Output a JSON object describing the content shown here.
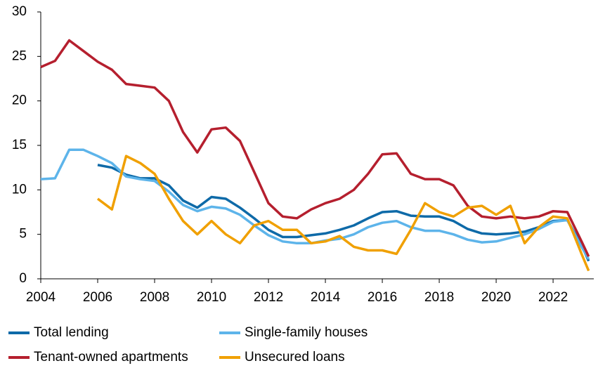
{
  "chart_data": {
    "type": "line",
    "x": [
      2004,
      2004.5,
      2005,
      2005.5,
      2006,
      2006.5,
      2007,
      2007.5,
      2008,
      2008.5,
      2009,
      2009.5,
      2010,
      2010.5,
      2011,
      2011.5,
      2012,
      2012.5,
      2013,
      2013.5,
      2014,
      2014.5,
      2015,
      2015.5,
      2016,
      2016.5,
      2017,
      2017.5,
      2018,
      2018.5,
      2019,
      2019.5,
      2020,
      2020.5,
      2021,
      2021.5,
      2022,
      2022.5,
      2023,
      2023.25
    ],
    "series": [
      {
        "name": "Total lending",
        "color": "#0e6aa8",
        "values": [
          null,
          null,
          null,
          null,
          12.8,
          12.5,
          11.7,
          11.3,
          11.3,
          10.5,
          8.8,
          8.0,
          9.2,
          9.0,
          8.0,
          6.8,
          5.5,
          4.7,
          4.7,
          4.9,
          5.1,
          5.5,
          6.0,
          6.8,
          7.5,
          7.6,
          7.1,
          7.0,
          7.0,
          6.5,
          5.6,
          5.1,
          5.0,
          5.1,
          5.3,
          5.8,
          6.5,
          6.6,
          3.8,
          2.0
        ]
      },
      {
        "name": "Single-family houses",
        "color": "#5db4ea",
        "values": [
          11.2,
          11.3,
          14.5,
          14.5,
          13.8,
          13.0,
          11.5,
          11.2,
          11.0,
          9.8,
          8.3,
          7.6,
          8.1,
          7.9,
          7.2,
          6.0,
          4.9,
          4.2,
          4.0,
          4.0,
          4.3,
          4.5,
          5.0,
          5.8,
          6.3,
          6.5,
          5.8,
          5.4,
          5.4,
          5.0,
          4.4,
          4.1,
          4.2,
          4.6,
          5.0,
          5.6,
          6.4,
          6.6,
          3.6,
          2.2
        ]
      },
      {
        "name": "Tenant-owned apartments",
        "color": "#b51f2e",
        "values": [
          23.8,
          24.5,
          26.8,
          25.6,
          24.4,
          23.5,
          21.9,
          21.7,
          21.5,
          20.0,
          16.5,
          14.2,
          16.8,
          17.0,
          15.5,
          12.0,
          8.5,
          7.0,
          6.8,
          7.8,
          8.5,
          9.0,
          10.0,
          11.8,
          14.0,
          14.1,
          11.8,
          11.2,
          11.2,
          10.5,
          8.2,
          7.0,
          6.8,
          7.0,
          6.8,
          7.0,
          7.6,
          7.5,
          4.2,
          2.5
        ]
      },
      {
        "name": "Unsecured loans",
        "color": "#f0a000",
        "values": [
          null,
          null,
          null,
          null,
          9.0,
          7.8,
          13.8,
          13.0,
          11.8,
          9.0,
          6.5,
          5.0,
          6.5,
          5.0,
          4.0,
          6.0,
          6.5,
          5.5,
          5.5,
          4.0,
          4.2,
          4.8,
          3.6,
          3.2,
          3.2,
          2.8,
          5.5,
          8.5,
          7.5,
          7.0,
          8.0,
          8.2,
          7.2,
          8.2,
          4.0,
          5.8,
          7.0,
          6.8,
          2.8,
          0.9
        ]
      }
    ],
    "xlim": [
      2004,
      2023.43
    ],
    "xticks": [
      2004,
      2006,
      2008,
      2010,
      2012,
      2014,
      2016,
      2018,
      2020,
      2022
    ],
    "ylim": [
      0,
      30
    ],
    "yticks": [
      0,
      5,
      10,
      15,
      20,
      25,
      30
    ]
  }
}
